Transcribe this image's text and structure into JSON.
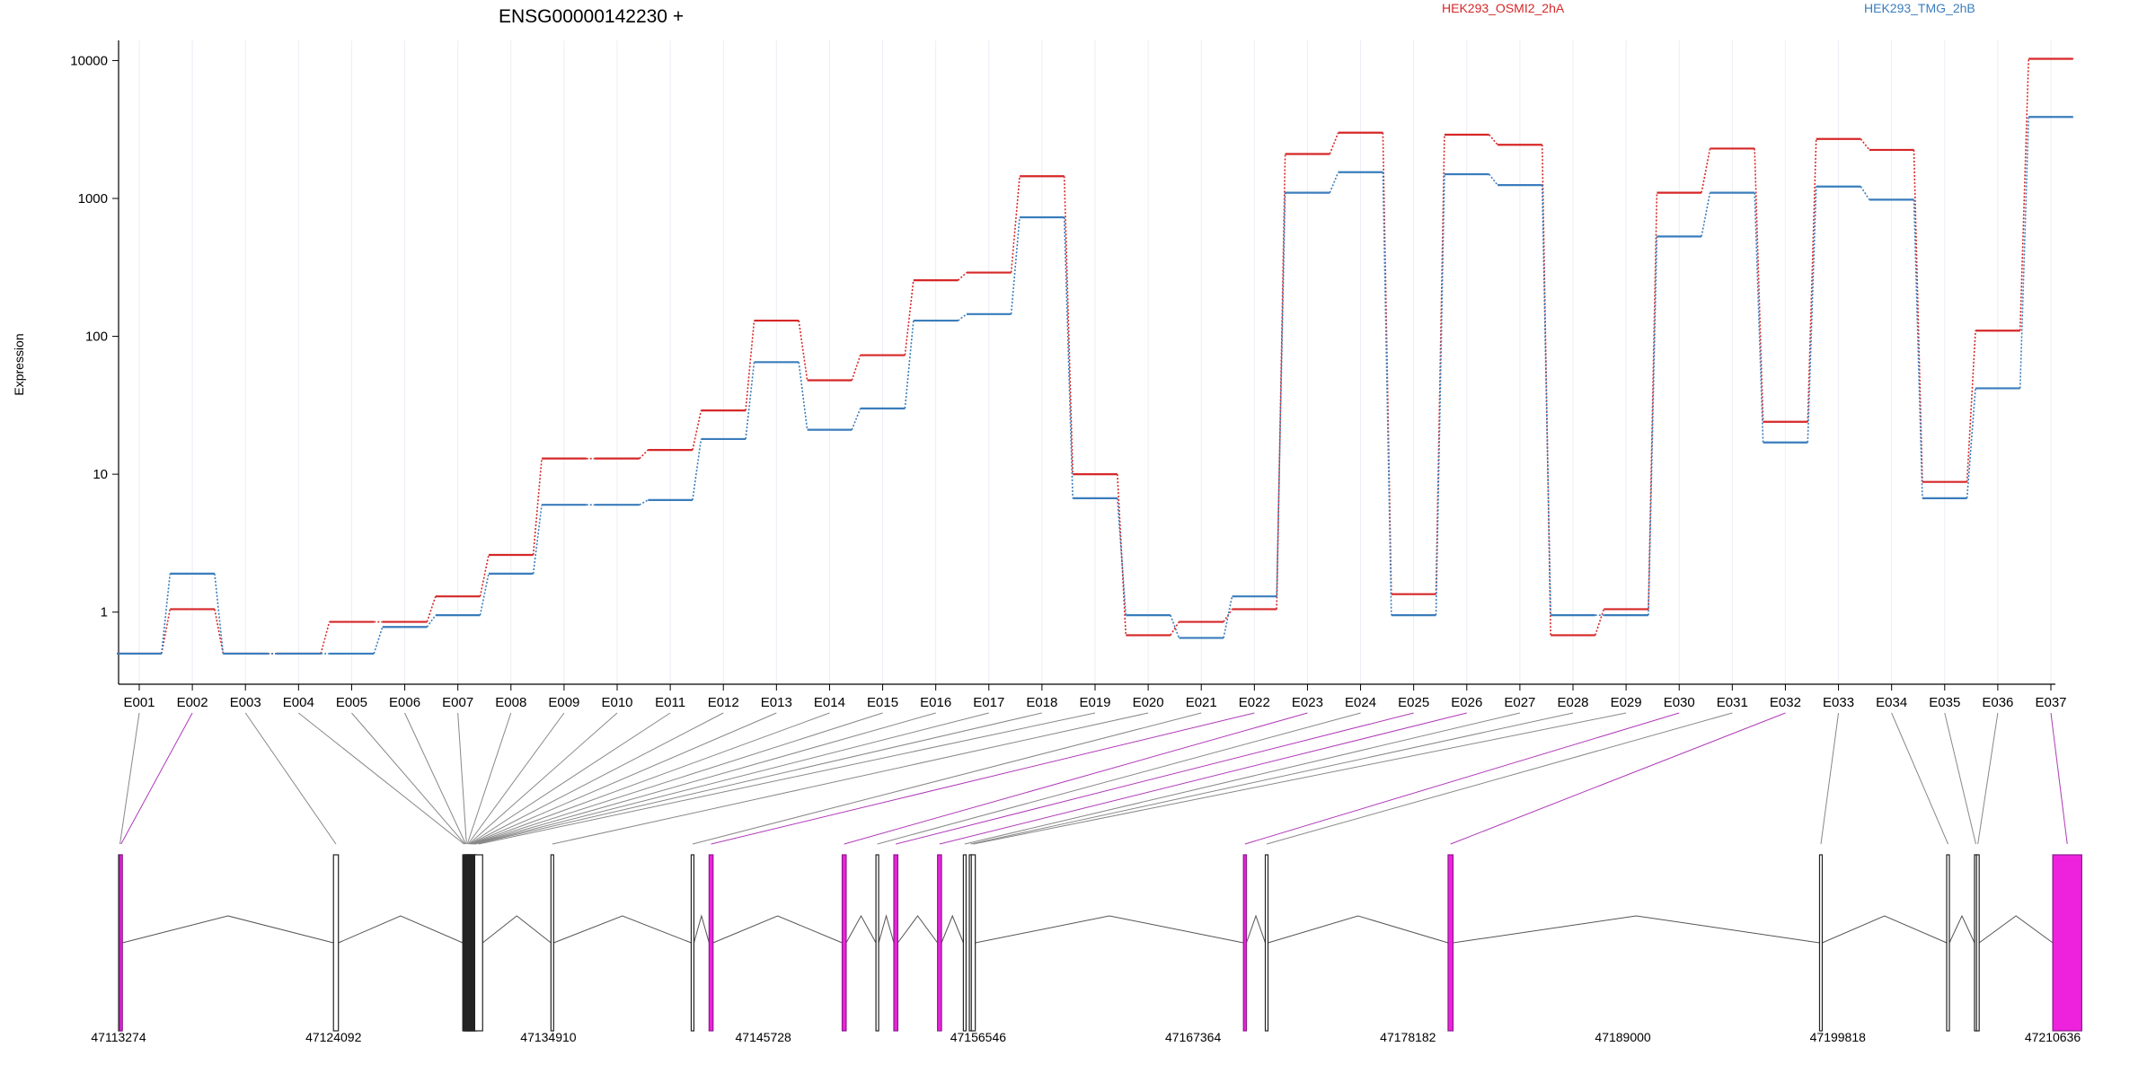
{
  "chart_data": {
    "type": "line",
    "title": "ENSG00000142230 +",
    "ylabel": "Expression",
    "xlabel": "",
    "y_scale": "log",
    "ylim": [
      0.3,
      14000
    ],
    "y_ticks": [
      1,
      10,
      100,
      1000,
      10000
    ],
    "y_tick_labels": [
      "1",
      "10",
      "100",
      "1000",
      "10000"
    ],
    "grid": "vertical lines at each exon",
    "legend_placement": "top-right",
    "categories": [
      "E001",
      "E002",
      "E003",
      "E004",
      "E005",
      "E006",
      "E007",
      "E008",
      "E009",
      "E010",
      "E011",
      "E012",
      "E013",
      "E014",
      "E015",
      "E016",
      "E017",
      "E018",
      "E019",
      "E020",
      "E021",
      "E022",
      "E023",
      "E024",
      "E025",
      "E026",
      "E027",
      "E028",
      "E029",
      "E030",
      "E031",
      "E032",
      "E033",
      "E034",
      "E035",
      "E036",
      "E037"
    ],
    "series": [
      {
        "name": "HEK293_OSMI2_2hA",
        "color": "#d62728",
        "values": [
          0.5,
          1.05,
          0.5,
          0.5,
          0.85,
          0.85,
          1.3,
          2.6,
          13,
          13,
          15,
          29,
          130,
          48,
          73,
          255,
          290,
          1450,
          10,
          0.68,
          0.85,
          1.05,
          2100,
          3000,
          1.35,
          2900,
          2450,
          0.68,
          1.05,
          1100,
          2300,
          24,
          2700,
          2250,
          8.8,
          110,
          10300
        ]
      },
      {
        "name": "HEK293_TMG_2hB",
        "color": "#3a7dbc",
        "values": [
          0.5,
          1.9,
          0.5,
          0.5,
          0.5,
          0.78,
          0.95,
          1.9,
          6,
          6,
          6.5,
          18,
          65,
          21,
          30,
          130,
          145,
          730,
          6.7,
          0.95,
          0.65,
          1.3,
          1100,
          1550,
          0.95,
          1500,
          1250,
          0.95,
          0.95,
          530,
          1100,
          17,
          1220,
          980,
          6.7,
          42,
          3900
        ]
      }
    ],
    "genomic_axis": {
      "tick_labels": [
        "47113274",
        "47124092",
        "47134910",
        "47145728",
        "47156546",
        "47167364",
        "47178182",
        "47189000",
        "47199818",
        "47210636"
      ],
      "tick_values": [
        47113274,
        47124092,
        47134910,
        47145728,
        47156546,
        47167364,
        47178182,
        47189000,
        47199818,
        47210636
      ],
      "exons": [
        {
          "id": "E001",
          "start": 47113274,
          "end": 47113330,
          "highlight": false
        },
        {
          "id": "E002",
          "start": 47113330,
          "end": 47113420,
          "highlight": true
        },
        {
          "id": "E003",
          "start": 47124092,
          "end": 47124340,
          "highlight": false
        },
        {
          "id": "E004",
          "start": 47130600,
          "end": 47130640,
          "highlight": false
        },
        {
          "id": "E005",
          "start": 47130640,
          "end": 47130680,
          "highlight": false
        },
        {
          "id": "E006",
          "start": 47130680,
          "end": 47130720,
          "highlight": false
        },
        {
          "id": "E007",
          "start": 47130720,
          "end": 47130760,
          "highlight": false
        },
        {
          "id": "E008",
          "start": 47130760,
          "end": 47130800,
          "highlight": false
        },
        {
          "id": "E009",
          "start": 47130800,
          "end": 47130840,
          "highlight": false
        },
        {
          "id": "E010",
          "start": 47130840,
          "end": 47130880,
          "highlight": false
        },
        {
          "id": "E011",
          "start": 47130880,
          "end": 47130920,
          "highlight": false
        },
        {
          "id": "E012",
          "start": 47130920,
          "end": 47130960,
          "highlight": false
        },
        {
          "id": "E013",
          "start": 47130960,
          "end": 47131000,
          "highlight": false
        },
        {
          "id": "E014",
          "start": 47131000,
          "end": 47131040,
          "highlight": false
        },
        {
          "id": "E015",
          "start": 47131040,
          "end": 47131080,
          "highlight": false
        },
        {
          "id": "E016",
          "start": 47131080,
          "end": 47131120,
          "highlight": false
        },
        {
          "id": "E017",
          "start": 47131120,
          "end": 47131160,
          "highlight": false
        },
        {
          "id": "E018",
          "start": 47131160,
          "end": 47131200,
          "highlight": false
        },
        {
          "id": "E019",
          "start": 47131200,
          "end": 47131600,
          "highlight": false
        },
        {
          "id": "E020",
          "start": 47135040,
          "end": 47135110,
          "highlight": false
        },
        {
          "id": "E021",
          "start": 47142100,
          "end": 47142200,
          "highlight": false
        },
        {
          "id": "E022",
          "start": 47143000,
          "end": 47143200,
          "highlight": true
        },
        {
          "id": "E023",
          "start": 47149700,
          "end": 47149900,
          "highlight": true
        },
        {
          "id": "E024",
          "start": 47151400,
          "end": 47151460,
          "highlight": false
        },
        {
          "id": "E025",
          "start": 47152300,
          "end": 47152500,
          "highlight": true
        },
        {
          "id": "E026",
          "start": 47154500,
          "end": 47154700,
          "highlight": true
        },
        {
          "id": "E027",
          "start": 47155800,
          "end": 47155900,
          "highlight": false
        },
        {
          "id": "E028",
          "start": 47156100,
          "end": 47156200,
          "highlight": false
        },
        {
          "id": "E029",
          "start": 47156200,
          "end": 47156400,
          "highlight": false
        },
        {
          "id": "E030",
          "start": 47169900,
          "end": 47170050,
          "highlight": true
        },
        {
          "id": "E031",
          "start": 47171000,
          "end": 47171100,
          "highlight": false
        },
        {
          "id": "E032",
          "start": 47180200,
          "end": 47180450,
          "highlight": true
        },
        {
          "id": "E033",
          "start": 47198900,
          "end": 47199000,
          "highlight": false
        },
        {
          "id": "E034",
          "start": 47205300,
          "end": 47205400,
          "highlight": false
        },
        {
          "id": "E035",
          "start": 47206700,
          "end": 47206800,
          "highlight": false
        },
        {
          "id": "E036",
          "start": 47206800,
          "end": 47206900,
          "highlight": false
        },
        {
          "id": "E037",
          "start": 47210640,
          "end": 47212100,
          "highlight": true
        }
      ]
    }
  }
}
